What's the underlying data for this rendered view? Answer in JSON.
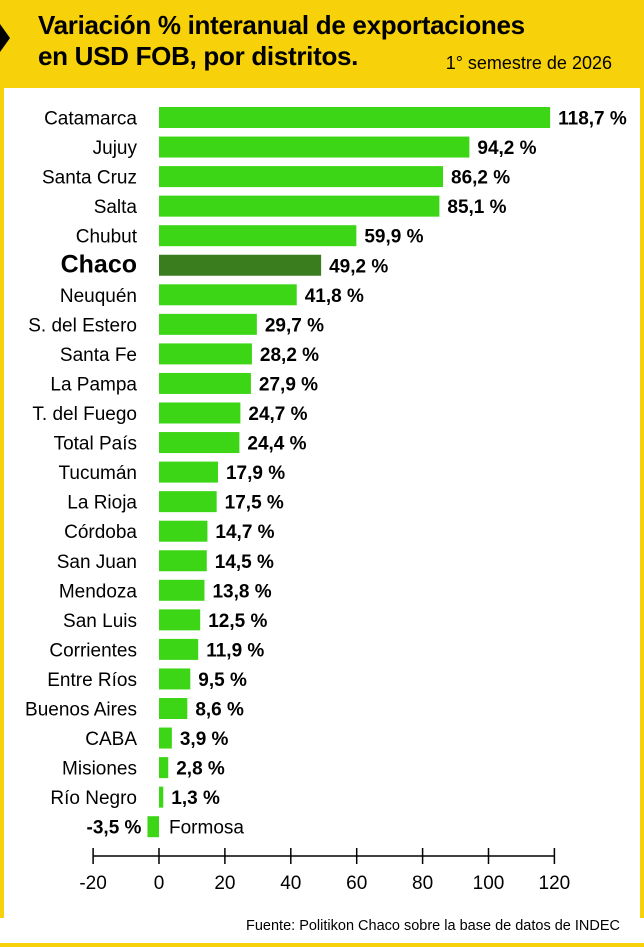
{
  "header": {
    "title_line1": "Variación % interanual de exportaciones",
    "title_line2": "en USD FOB, por distritos.",
    "subtitle": "1° semestre de 2026"
  },
  "source": "Fuente: Politikon Chaco sobre la base de datos de INDEC",
  "colors": {
    "bar": "#3dd616",
    "highlight_bar": "#3a7d1e",
    "header_bg": "#f7d10a",
    "axis": "#000000"
  },
  "chart_data": {
    "type": "bar",
    "orientation": "horizontal",
    "title": "Variación % interanual de exportaciones en USD FOB, por distritos.",
    "subtitle": "1° semestre de 2026",
    "xlabel": "",
    "ylabel": "",
    "xlim": [
      -20,
      120
    ],
    "xticks": [
      -20,
      0,
      20,
      40,
      60,
      80,
      100,
      120
    ],
    "grid": false,
    "legend": "none",
    "highlight": "Chaco",
    "categories": [
      "Catamarca",
      "Jujuy",
      "Santa Cruz",
      "Salta",
      "Chubut",
      "Chaco",
      "Neuquén",
      "S. del Estero",
      "Santa Fe",
      "La Pampa",
      "T. del Fuego",
      "Total País",
      "Tucumán",
      "La Rioja",
      "Córdoba",
      "San Juan",
      "Mendoza",
      "San Luis",
      "Corrientes",
      "Entre Ríos",
      "Buenos Aires",
      "CABA",
      "Misiones",
      "Río Negro",
      "Formosa"
    ],
    "values": [
      118.7,
      94.2,
      86.2,
      85.1,
      59.9,
      49.2,
      41.8,
      29.7,
      28.2,
      27.9,
      24.7,
      24.4,
      17.9,
      17.5,
      14.7,
      14.5,
      13.8,
      12.5,
      11.9,
      9.5,
      8.6,
      3.9,
      2.8,
      1.3,
      -3.5
    ],
    "labels": [
      "118,7 %",
      "94,2 %",
      "86,2 %",
      "85,1 %",
      "59,9 %",
      "49,2 %",
      "41,8 %",
      "29,7 %",
      "28,2 %",
      "27,9 %",
      "24,7 %",
      "24,4 %",
      "17,9 %",
      "17,5 %",
      "14,7 %",
      "14,5 %",
      "13,8 %",
      "12,5 %",
      "11,9 %",
      "9,5 %",
      "8,6 %",
      "3,9 %",
      "2,8 %",
      "1,3 %",
      "-3,5 %"
    ]
  }
}
